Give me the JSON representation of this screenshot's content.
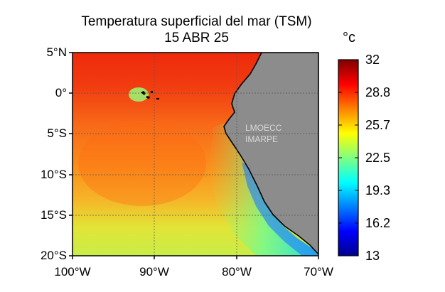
{
  "title": {
    "line1": "Temperatura superficial del mar (TSM)",
    "line2": "15 ABR 25"
  },
  "colorbar": {
    "unit": "°c",
    "ticks": [
      "32",
      "28.8",
      "25.7",
      "22.5",
      "19.3",
      "16.2",
      "13"
    ],
    "min": 13,
    "max": 32,
    "colormap": [
      "#7f0000",
      "#ff0000",
      "#ff8000",
      "#ffff00",
      "#80ff80",
      "#00ffff",
      "#0080ff",
      "#0000ff",
      "#00008f"
    ]
  },
  "axes": {
    "lat_labels": [
      "5°N",
      "0°",
      "5°S",
      "10°S",
      "15°S",
      "20°S"
    ],
    "lon_labels": [
      "100°W",
      "90°W",
      "80°W",
      "70°W"
    ]
  },
  "watermark": {
    "line1": "LMOECC",
    "line2": "IMARPE"
  },
  "colors": {
    "land": "#8c8c8c",
    "grid": "#555555"
  }
}
